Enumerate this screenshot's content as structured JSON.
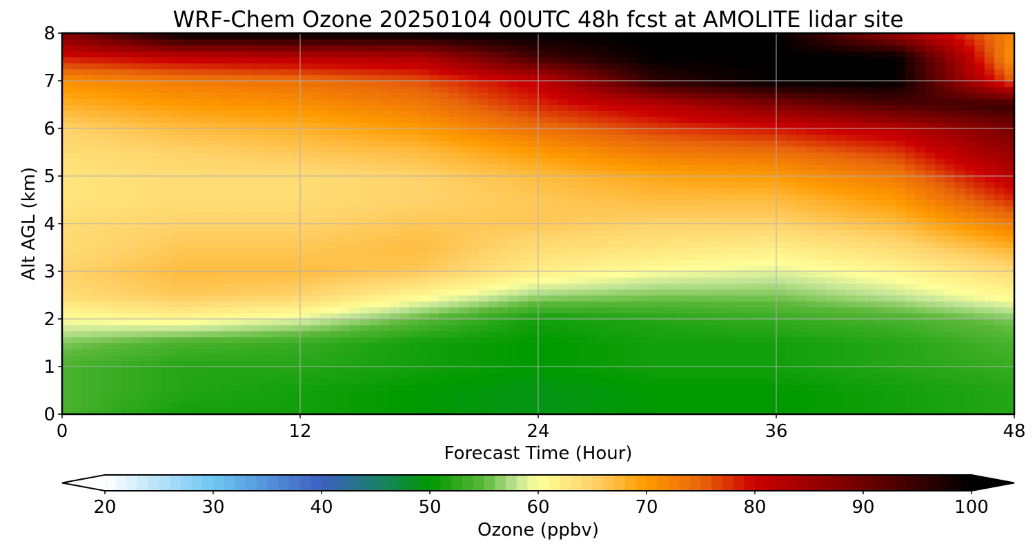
{
  "chart_data": {
    "type": "heatmap",
    "title": "WRF-Chem Ozone  20250104 00UTC 48h fcst at AMOLITE lidar site",
    "xlabel": "Forecast Time (Hour)",
    "ylabel": "Alt AGL (km)",
    "xlim": [
      0,
      48
    ],
    "ylim": [
      0,
      8
    ],
    "xticks": [
      "0",
      "12",
      "24",
      "36",
      "48"
    ],
    "yticks": [
      "0",
      "1",
      "2",
      "3",
      "4",
      "5",
      "6",
      "7",
      "8"
    ],
    "grid": true,
    "x_hours": [
      0,
      6,
      12,
      18,
      24,
      30,
      36,
      42,
      48
    ],
    "z_km": [
      0,
      0.5,
      1,
      1.5,
      2,
      2.5,
      3,
      3.5,
      4,
      4.5,
      5,
      5.5,
      6,
      6.5,
      7,
      7.5,
      8
    ],
    "ozone_ppbv": [
      [
        54,
        51,
        51,
        50,
        49,
        50,
        50,
        51,
        52
      ],
      [
        54,
        52,
        51,
        50,
        49,
        50,
        50,
        51,
        52
      ],
      [
        54,
        52,
        52,
        51,
        50,
        51,
        51,
        52,
        53
      ],
      [
        56,
        54,
        53,
        51,
        50,
        51,
        51,
        52,
        54
      ],
      [
        60,
        61,
        59,
        55,
        51,
        52,
        53,
        54,
        56
      ],
      [
        64,
        66,
        65,
        61,
        57,
        56,
        56,
        58,
        61
      ],
      [
        65,
        67,
        67,
        66,
        62,
        60,
        59,
        61,
        64
      ],
      [
        64,
        66,
        66,
        67,
        64,
        63,
        62,
        64,
        68
      ],
      [
        64,
        65,
        65,
        66,
        66,
        65,
        65,
        67,
        73
      ],
      [
        63,
        64,
        64,
        65,
        66,
        67,
        67,
        70,
        78
      ],
      [
        63,
        64,
        64,
        65,
        67,
        69,
        70,
        73,
        82
      ],
      [
        64,
        65,
        66,
        67,
        70,
        73,
        74,
        77,
        86
      ],
      [
        65,
        67,
        68,
        70,
        74,
        77,
        79,
        82,
        89
      ],
      [
        68,
        70,
        71,
        73,
        78,
        82,
        88,
        93,
        95
      ],
      [
        71,
        73,
        74,
        76,
        81,
        96,
        100,
        100,
        75
      ],
      [
        79,
        81,
        82,
        83,
        94,
        100,
        100,
        100,
        70
      ],
      [
        88,
        100,
        100,
        100,
        100,
        100,
        100,
        85,
        72
      ]
    ],
    "colorbar": {
      "label": "Ozone  (ppbv)",
      "min": 20,
      "max": 100,
      "ticks": [
        "20",
        "30",
        "40",
        "50",
        "60",
        "70",
        "80",
        "90",
        "100"
      ],
      "extend": "both",
      "colors": {
        "20": "#ffffff",
        "30": "#6dc6f2",
        "40": "#3d5fc0",
        "45": "#1b7f6e",
        "50": "#009900",
        "55": "#5cb83a",
        "58": "#c3e598",
        "60": "#ffff99",
        "65": "#ffd36b",
        "70": "#ff9a00",
        "75": "#e8660a",
        "80": "#cc0000",
        "90": "#6e0000",
        "100": "#000000"
      }
    }
  }
}
